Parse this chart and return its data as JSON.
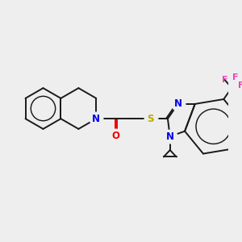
{
  "bg_color": "#eeeeee",
  "bond_color": "#1a1a1a",
  "N_color": "#0000ee",
  "O_color": "#ee0000",
  "S_color": "#bbaa00",
  "F_color": "#ee44bb",
  "lw": 1.4,
  "xlim": [
    0,
    10
  ],
  "ylim": [
    0,
    10
  ]
}
